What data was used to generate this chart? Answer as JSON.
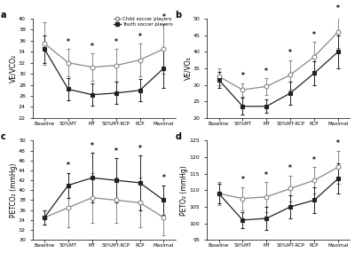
{
  "x_labels": [
    "Baseline",
    "50%MT",
    "MT",
    "50%MT-RCP",
    "RCP",
    "Maximal"
  ],
  "panel_a": {
    "title": "a",
    "ylabel": "VE/VCO₂",
    "ylim": [
      22,
      40
    ],
    "yticks": [
      22,
      24,
      26,
      28,
      30,
      32,
      34,
      36,
      38,
      40
    ],
    "child_mean": [
      35.5,
      32.0,
      31.2,
      31.5,
      32.5,
      34.5
    ],
    "child_err": [
      3.8,
      2.5,
      2.5,
      3.0,
      3.0,
      4.5
    ],
    "youth_mean": [
      34.5,
      27.2,
      26.2,
      26.5,
      27.0,
      31.0
    ],
    "youth_err": [
      2.5,
      2.0,
      2.0,
      2.0,
      2.0,
      3.5
    ],
    "sig_points": [
      1,
      2,
      3,
      4,
      5
    ]
  },
  "panel_b": {
    "title": "b",
    "ylabel": "VE/VO₂",
    "ylim": [
      20,
      50
    ],
    "yticks": [
      20,
      25,
      30,
      35,
      40,
      45,
      50
    ],
    "child_mean": [
      32.5,
      28.5,
      29.5,
      33.0,
      38.5,
      46.0
    ],
    "child_err": [
      2.5,
      2.0,
      2.5,
      4.5,
      4.5,
      5.0
    ],
    "youth_mean": [
      31.5,
      23.5,
      23.5,
      27.5,
      33.5,
      40.0
    ],
    "youth_err": [
      2.5,
      2.5,
      2.0,
      3.5,
      3.5,
      5.0
    ],
    "sig_points": [
      1,
      2,
      3,
      4,
      5
    ]
  },
  "panel_c": {
    "title": "c",
    "ylabel": "PETCO₂ (mmHg)",
    "ylim": [
      30,
      50
    ],
    "yticks": [
      30,
      32,
      34,
      36,
      38,
      40,
      42,
      44,
      46,
      48,
      50
    ],
    "child_mean": [
      34.5,
      36.5,
      38.5,
      38.0,
      37.5,
      34.5
    ],
    "child_err": [
      1.5,
      4.0,
      5.0,
      4.5,
      5.0,
      3.5
    ],
    "youth_mean": [
      34.5,
      41.0,
      42.5,
      42.0,
      41.5,
      38.0
    ],
    "youth_err": [
      1.5,
      2.5,
      5.0,
      4.5,
      5.5,
      3.0
    ],
    "sig_points": [
      1,
      2,
      3,
      4,
      5
    ]
  },
  "panel_d": {
    "title": "d",
    "ylabel": "PETO₂ (mmHg)",
    "ylim": [
      95,
      125
    ],
    "yticks": [
      95,
      100,
      105,
      110,
      115,
      120,
      125
    ],
    "child_mean": [
      109.0,
      107.5,
      108.0,
      110.5,
      113.0,
      117.0
    ],
    "child_err": [
      3.5,
      3.5,
      4.5,
      4.0,
      4.0,
      5.0
    ],
    "youth_mean": [
      109.0,
      101.0,
      101.5,
      105.0,
      107.0,
      113.5
    ],
    "youth_err": [
      3.0,
      2.5,
      3.5,
      3.5,
      4.0,
      4.5
    ],
    "sig_points": [
      1,
      2,
      3,
      4,
      5
    ]
  },
  "child_color": "#888888",
  "youth_color": "#222222",
  "child_label": "Child soccer players",
  "youth_label": "Youth soccer players",
  "fig_width": 4.0,
  "fig_height": 2.85,
  "dpi": 100
}
